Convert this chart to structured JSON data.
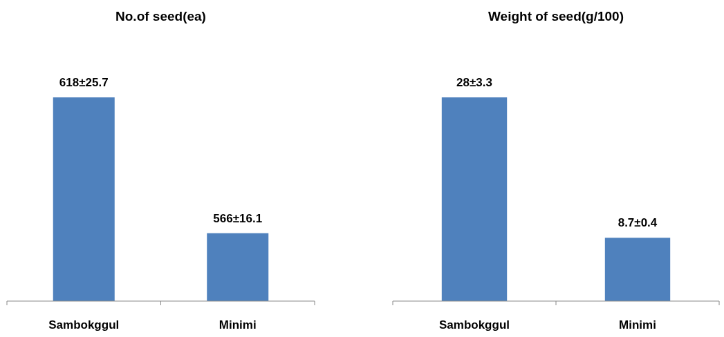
{
  "chart_data": [
    {
      "type": "bar",
      "title": "No.of seed(ea)",
      "categories": [
        "Sambokggul",
        "Minimi"
      ],
      "values": [
        618,
        566
      ],
      "value_labels": [
        "618±25.7",
        "566±16.1"
      ],
      "color": "#4f81bd",
      "ylim": [
        540,
        618
      ],
      "tick_labels": "x"
    },
    {
      "type": "bar",
      "title": "Weight of seed(g/100)",
      "categories": [
        "Sambokggul",
        "Minimi"
      ],
      "values": [
        28,
        8.7
      ],
      "value_labels": [
        "28±3.3",
        "8.7±0.4"
      ],
      "color": "#4f81bd",
      "tick_labels": "x"
    }
  ]
}
